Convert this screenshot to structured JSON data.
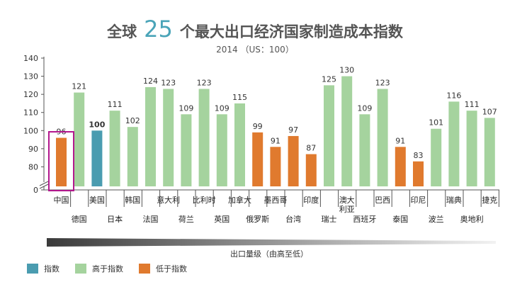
{
  "header": {
    "title_prefix": "全球",
    "title_number": "25",
    "title_suffix": "个最大出口经济国家制造成本指数",
    "subtitle": "2014 （US：100）"
  },
  "axis_caption": "出口量级（由高至低）",
  "legend": [
    {
      "label": "指数",
      "color": "#4a9cb0"
    },
    {
      "label": "高于指数",
      "color": "#a5d39e"
    },
    {
      "label": "低于指数",
      "color": "#e07a2e"
    }
  ],
  "colors": {
    "index": "#4a9cb0",
    "above": "#a5d39e",
    "below": "#e07a2e",
    "highlight_box": "#b3188e",
    "axis": "#555555"
  },
  "chart_data": {
    "type": "bar",
    "categories": [
      "中国",
      "德国",
      "美国",
      "日本",
      "韩国",
      "法国",
      "意大利",
      "荷兰",
      "比利时",
      "英国",
      "加拿大",
      "俄罗斯",
      "墨西哥",
      "台湾",
      "印度",
      "瑞士",
      "澳大利亚",
      "西班牙",
      "巴西",
      "泰国",
      "印尼",
      "波兰",
      "瑞典",
      "奥地利",
      "捷克"
    ],
    "values": [
      96,
      121,
      100,
      111,
      102,
      124,
      123,
      109,
      123,
      109,
      115,
      99,
      91,
      97,
      87,
      125,
      130,
      109,
      123,
      91,
      83,
      101,
      116,
      111,
      107
    ],
    "groups": [
      "below",
      "above",
      "index",
      "above",
      "above",
      "above",
      "above",
      "above",
      "above",
      "above",
      "above",
      "below",
      "below",
      "below",
      "below",
      "above",
      "above",
      "above",
      "above",
      "below",
      "below",
      "above",
      "above",
      "above",
      "above"
    ],
    "highlighted": [
      "中国"
    ],
    "bold_labels": [
      "美国"
    ],
    "yticks": [
      0,
      80,
      90,
      100,
      110,
      120,
      130,
      140
    ],
    "ylim": [
      70,
      140
    ],
    "axis_break": true
  }
}
